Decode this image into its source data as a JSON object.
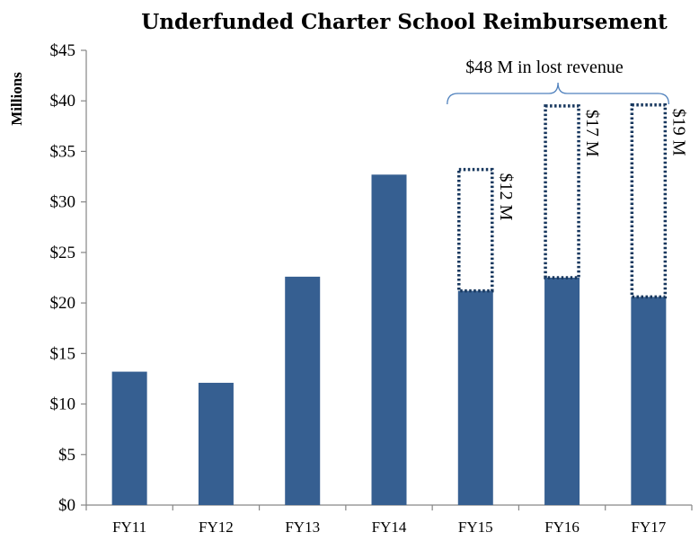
{
  "chart_data": {
    "type": "bar",
    "title": "Underfunded Charter School Reimbursement",
    "ylabel": "Millions",
    "xlabel": "",
    "ylim": [
      0,
      45
    ],
    "yticks": [
      0,
      5,
      10,
      15,
      20,
      25,
      30,
      35,
      40,
      45
    ],
    "ytick_labels": [
      "$0",
      "$5",
      "$10",
      "$15",
      "$20",
      "$25",
      "$30",
      "$35",
      "$40",
      "$45"
    ],
    "categories": [
      "FY11",
      "FY12",
      "FY13",
      "FY14",
      "FY15",
      "FY16",
      "FY17"
    ],
    "series": [
      {
        "values": [
          13.2,
          12.1,
          22.6,
          32.7,
          21.2,
          22.5,
          20.6
        ],
        "color": "#365F91",
        "style": "solid"
      },
      {
        "values": [
          null,
          null,
          null,
          null,
          12,
          17,
          19
        ],
        "color": "#17375E",
        "style": "dotted-outline",
        "labels": [
          "",
          "",
          "",
          "",
          "$12 M",
          "$17 M",
          "$19 M"
        ]
      }
    ],
    "bracket": {
      "label": "$48 M in lost revenue",
      "from": "FY15",
      "to": "FY17"
    },
    "grid": false,
    "legend": "none"
  }
}
